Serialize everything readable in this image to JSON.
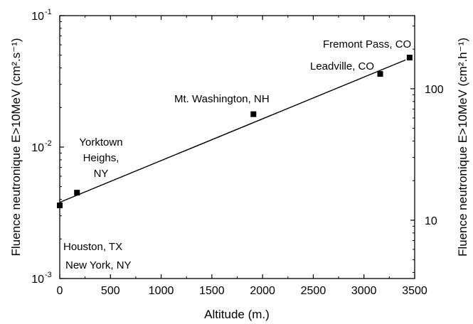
{
  "chart_data": {
    "type": "scatter",
    "xlabel": "Altitude (m.)",
    "ylabel_left": "Fluence neutronique E>10MeV (cm².s⁻¹)",
    "ylabel_right": "Fluence neutronique E>10MeV (cm².h⁻¹)",
    "xlim": [
      0,
      3500
    ],
    "ylim_left": [
      0.001,
      0.1
    ],
    "ylim_right": [
      3.6,
      360
    ],
    "y_scale": "log",
    "x_ticks": [
      "0",
      "500",
      "1000",
      "1500",
      "2000",
      "2500",
      "3000",
      "3500"
    ],
    "y_left_ticks": [
      {
        "base": "10",
        "exp": "-3",
        "value": 0.001
      },
      {
        "base": "10",
        "exp": "-2",
        "value": 0.01
      },
      {
        "base": "10",
        "exp": "-1",
        "value": 0.1
      }
    ],
    "y_right_ticks": [
      {
        "label": "10",
        "value": 10
      },
      {
        "label": "100",
        "value": 100
      }
    ],
    "points": [
      {
        "x": 0,
        "y": 0.0036
      },
      {
        "x": 170,
        "y": 0.0045
      },
      {
        "x": 1910,
        "y": 0.0178
      },
      {
        "x": 3160,
        "y": 0.036
      },
      {
        "x": 3450,
        "y": 0.048
      }
    ],
    "fit_line": [
      {
        "x": 0,
        "y": 0.0038
      },
      {
        "x": 3410,
        "y": 0.046
      }
    ],
    "annotations": {
      "houston": "Houston, TX",
      "new_york": "New York, NY",
      "yorktown_1": "Yorktown",
      "yorktown_2": "Heighs,",
      "yorktown_3": "NY",
      "mt_washington": "Mt. Washington, NH",
      "leadville": "Leadville, CO",
      "fremont": "Fremont Pass, CO"
    },
    "grid": false,
    "legend": "none"
  }
}
